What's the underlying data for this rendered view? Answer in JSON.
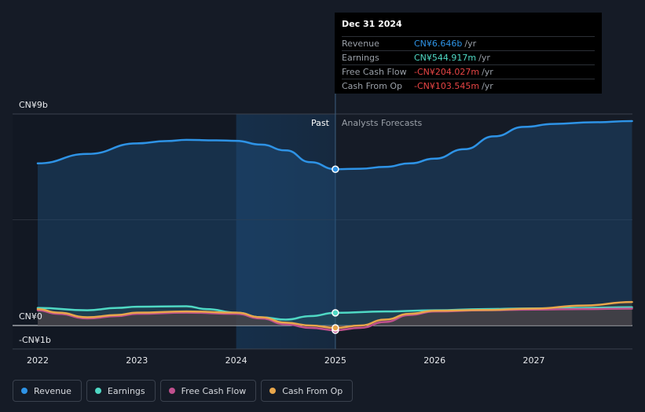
{
  "tooltip": {
    "date": "Dec 31 2024",
    "rows": [
      {
        "label": "Revenue",
        "value": "CN¥6.646b",
        "unit": "/yr",
        "color": "#2e93e6"
      },
      {
        "label": "Earnings",
        "value": "CN¥544.917m",
        "unit": "/yr",
        "color": "#4fd8c4"
      },
      {
        "label": "Free Cash Flow",
        "value": "-CN¥204.027m",
        "unit": "/yr",
        "color": "#e84545"
      },
      {
        "label": "Cash From Op",
        "value": "-CN¥103.545m",
        "unit": "/yr",
        "color": "#e84545"
      }
    ]
  },
  "chart_data": {
    "type": "area",
    "y_tick_labels": [
      "CN¥9b",
      "CN¥0",
      "-CN¥1b"
    ],
    "y_ticks": [
      9,
      0,
      -1
    ],
    "ylim": [
      -1,
      9
    ],
    "xlim": [
      2021.9,
      2027.99
    ],
    "x_ticks": [
      2022,
      2023,
      2024,
      2025,
      2026,
      2027
    ],
    "x_tick_labels": [
      "2022",
      "2023",
      "2024",
      "2025",
      "2026",
      "2027"
    ],
    "past_label": "Past",
    "forecast_label": "Analysts Forecasts",
    "highlight_start": 2024.0,
    "divider_x": 2025.0,
    "series": [
      {
        "name": "Revenue",
        "color": "#2e93e6",
        "points": [
          [
            2022.0,
            6.9
          ],
          [
            2022.5,
            7.3
          ],
          [
            2023.0,
            7.75
          ],
          [
            2023.3,
            7.85
          ],
          [
            2023.5,
            7.9
          ],
          [
            2023.8,
            7.88
          ],
          [
            2024.0,
            7.86
          ],
          [
            2024.25,
            7.7
          ],
          [
            2024.5,
            7.45
          ],
          [
            2024.75,
            6.95
          ],
          [
            2025.0,
            6.65
          ],
          [
            2025.25,
            6.67
          ],
          [
            2025.5,
            6.75
          ],
          [
            2025.75,
            6.9
          ],
          [
            2026.0,
            7.1
          ],
          [
            2026.3,
            7.5
          ],
          [
            2026.6,
            8.05
          ],
          [
            2026.9,
            8.45
          ],
          [
            2027.2,
            8.58
          ],
          [
            2027.6,
            8.65
          ],
          [
            2027.99,
            8.7
          ]
        ]
      },
      {
        "name": "Earnings",
        "color": "#4fd8c4",
        "points": [
          [
            2022.0,
            0.75
          ],
          [
            2022.5,
            0.65
          ],
          [
            2022.8,
            0.75
          ],
          [
            2023.0,
            0.8
          ],
          [
            2023.5,
            0.82
          ],
          [
            2023.7,
            0.7
          ],
          [
            2024.0,
            0.55
          ],
          [
            2024.25,
            0.35
          ],
          [
            2024.5,
            0.25
          ],
          [
            2024.75,
            0.4
          ],
          [
            2025.0,
            0.54
          ],
          [
            2025.5,
            0.6
          ],
          [
            2026.0,
            0.65
          ],
          [
            2026.5,
            0.7
          ],
          [
            2027.0,
            0.73
          ],
          [
            2027.5,
            0.75
          ],
          [
            2027.99,
            0.78
          ]
        ]
      },
      {
        "name": "Free Cash Flow",
        "color": "#c0508e",
        "points": [
          [
            2022.0,
            0.65
          ],
          [
            2022.2,
            0.5
          ],
          [
            2022.5,
            0.3
          ],
          [
            2022.8,
            0.4
          ],
          [
            2023.0,
            0.5
          ],
          [
            2023.5,
            0.55
          ],
          [
            2024.0,
            0.5
          ],
          [
            2024.25,
            0.3
          ],
          [
            2024.5,
            0.05
          ],
          [
            2024.75,
            -0.1
          ],
          [
            2025.0,
            -0.2
          ],
          [
            2025.25,
            -0.1
          ],
          [
            2025.5,
            0.15
          ],
          [
            2025.75,
            0.45
          ],
          [
            2026.0,
            0.6
          ],
          [
            2026.5,
            0.65
          ],
          [
            2027.0,
            0.68
          ],
          [
            2027.5,
            0.7
          ],
          [
            2027.99,
            0.72
          ]
        ]
      },
      {
        "name": "Cash From Op",
        "color": "#e8a64b",
        "points": [
          [
            2022.0,
            0.7
          ],
          [
            2022.2,
            0.55
          ],
          [
            2022.5,
            0.35
          ],
          [
            2022.8,
            0.45
          ],
          [
            2023.0,
            0.55
          ],
          [
            2023.5,
            0.6
          ],
          [
            2024.0,
            0.55
          ],
          [
            2024.25,
            0.35
          ],
          [
            2024.5,
            0.12
          ],
          [
            2024.75,
            0.0
          ],
          [
            2025.0,
            -0.1
          ],
          [
            2025.25,
            0.0
          ],
          [
            2025.5,
            0.25
          ],
          [
            2025.75,
            0.5
          ],
          [
            2026.0,
            0.63
          ],
          [
            2026.5,
            0.66
          ],
          [
            2027.0,
            0.72
          ],
          [
            2027.5,
            0.85
          ],
          [
            2027.99,
            1.0
          ]
        ]
      }
    ]
  },
  "legend": [
    {
      "label": "Revenue",
      "color": "#2e93e6"
    },
    {
      "label": "Earnings",
      "color": "#4fd8c4"
    },
    {
      "label": "Free Cash Flow",
      "color": "#c0508e"
    },
    {
      "label": "Cash From Op",
      "color": "#e8a64b"
    }
  ]
}
